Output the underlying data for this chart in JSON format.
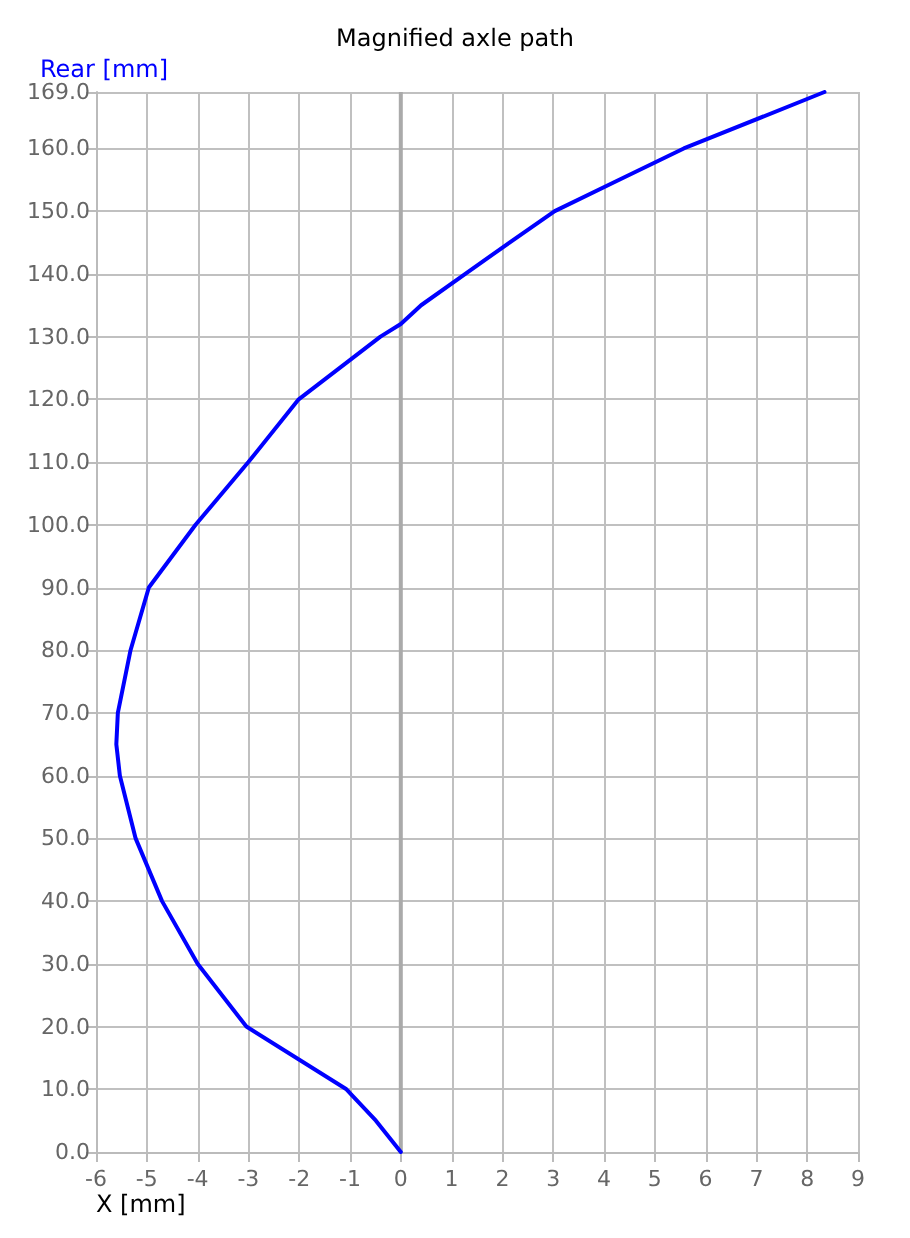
{
  "chart_data": {
    "type": "line",
    "title": "Magnified axle path",
    "xlabel": "X [mm]",
    "ylabel": "Rear [mm]",
    "series": [
      {
        "color": "#0000ff",
        "x": [
          0,
          -0.49,
          -1.07,
          -3.04,
          -4.0,
          -4.7,
          -5.22,
          -5.53,
          -5.6,
          -5.57,
          -5.32,
          -4.96,
          -4.04,
          -3.0,
          -2.01,
          -0.4,
          0,
          0.4,
          1.27,
          2.14,
          3.03,
          4.3,
          5.57,
          8.34
        ],
        "values": [
          0,
          5,
          10,
          20,
          30,
          40,
          50,
          60,
          65,
          70,
          80,
          90,
          100,
          110,
          120,
          130,
          132,
          135,
          140,
          145,
          150,
          155,
          160,
          169
        ]
      }
    ],
    "xlim": [
      -6,
      9
    ],
    "xticks": [
      -6,
      -5,
      -4,
      -3,
      -2,
      -1,
      0,
      1,
      2,
      3,
      4,
      5,
      6,
      7,
      8,
      9
    ],
    "ylim": [
      0,
      169
    ],
    "yticks": [
      {
        "value": 0,
        "label": "0.0"
      },
      {
        "value": 10,
        "label": "10.0"
      },
      {
        "value": 20,
        "label": "20.0"
      },
      {
        "value": 30,
        "label": "30.0"
      },
      {
        "value": 40,
        "label": "40.0"
      },
      {
        "value": 50,
        "label": "50.0"
      },
      {
        "value": 60,
        "label": "60.0"
      },
      {
        "value": 70,
        "label": "70.0"
      },
      {
        "value": 80,
        "label": "80.0"
      },
      {
        "value": 90,
        "label": "90.0"
      },
      {
        "value": 100,
        "label": "100.0"
      },
      {
        "value": 110,
        "label": "110.0"
      },
      {
        "value": 120,
        "label": "120.0"
      },
      {
        "value": 130,
        "label": "130.0"
      },
      {
        "value": 140,
        "label": "140.0"
      },
      {
        "value": 150,
        "label": "150.0"
      },
      {
        "value": 160,
        "label": "160.0"
      },
      {
        "value": 169,
        "label": "169.0"
      }
    ],
    "ref_lines": [
      {
        "axis": "x",
        "value": 0,
        "color": "#aaaaaa"
      }
    ],
    "grid": true,
    "marker": "none",
    "line_style": "solid"
  }
}
